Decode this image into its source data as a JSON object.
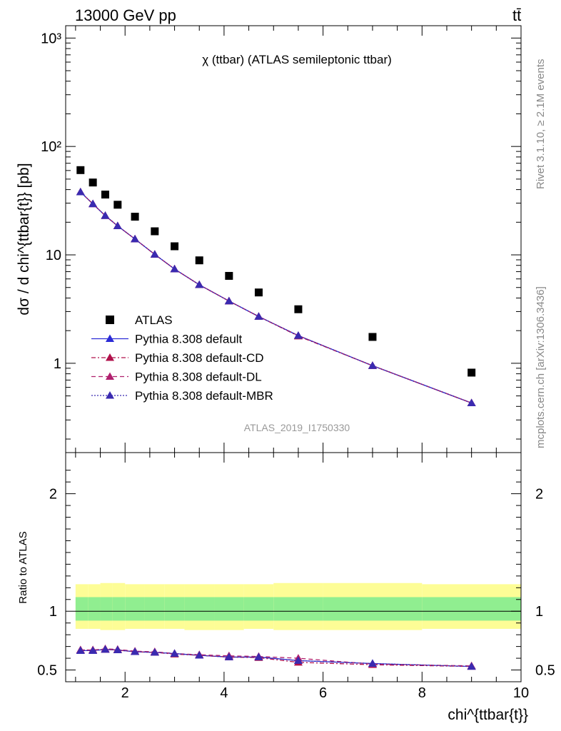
{
  "header": {
    "left": "13000 GeV pp",
    "right": "tt̄"
  },
  "side_labels": {
    "rivet": "Rivet 3.1.10, ≥ 2.1M events",
    "mcplots": "mcplots.cern.ch [arXiv:1306.3436]"
  },
  "colors": {
    "data": "#000000",
    "default": "#2b2bd6",
    "cd": "#b0104a",
    "dl": "#b0206e",
    "mbr": "#3a2ab0",
    "band_outer": "#fdfd96",
    "band_inner": "#90ee90"
  },
  "chart_data": [
    {
      "type": "scatter",
      "panel": "main",
      "title": "χ (ttbar) (ATLAS semileptonic ttbar)",
      "watermark": "ATLAS_2019_I1750330",
      "ylabel": "dσ / d chi^{ttbar{t}} [pb]",
      "yscale": "log",
      "ylim": [
        0.15,
        1300
      ],
      "xlim": [
        0.8,
        10
      ],
      "y_ticks": [
        "1",
        "10",
        "10²",
        "10³"
      ],
      "x_ticks": [
        "2",
        "4",
        "6",
        "8",
        "10"
      ],
      "x": [
        1.1,
        1.35,
        1.6,
        1.85,
        2.2,
        2.6,
        3.0,
        3.5,
        4.1,
        4.7,
        5.5,
        7.0,
        9.0
      ],
      "series": [
        {
          "name": "ATLAS",
          "marker": "square",
          "values": [
            60.5,
            46.5,
            36.0,
            29.0,
            22.5,
            16.5,
            12.0,
            8.9,
            6.4,
            4.5,
            3.15,
            1.75,
            0.82
          ]
        },
        {
          "name": "Pythia 8.308 default",
          "marker": "triangle",
          "line": "solid",
          "values": [
            38.0,
            29.5,
            23.0,
            18.5,
            14.0,
            10.1,
            7.4,
            5.3,
            3.75,
            2.7,
            1.8,
            0.95,
            0.43
          ]
        },
        {
          "name": "Pythia 8.308 default-CD",
          "marker": "triangle",
          "line": "dashdot",
          "values": [
            38.0,
            29.5,
            23.0,
            18.5,
            14.0,
            10.1,
            7.4,
            5.3,
            3.75,
            2.7,
            1.78,
            0.95,
            0.43
          ]
        },
        {
          "name": "Pythia 8.308 default-DL",
          "marker": "triangle",
          "line": "dashed",
          "values": [
            38.0,
            29.5,
            23.0,
            18.5,
            14.0,
            10.1,
            7.4,
            5.3,
            3.75,
            2.7,
            1.8,
            0.95,
            0.43
          ]
        },
        {
          "name": "Pythia 8.308 default-MBR",
          "marker": "triangle",
          "line": "dotted",
          "values": [
            38.0,
            29.5,
            23.0,
            18.5,
            14.0,
            10.1,
            7.4,
            5.3,
            3.75,
            2.7,
            1.8,
            0.95,
            0.43
          ]
        }
      ]
    },
    {
      "type": "line",
      "panel": "ratio",
      "ylabel": "Ratio to ATLAS",
      "xlabel": "chi^{ttbar{t}}",
      "ylim": [
        0.4,
        2.35
      ],
      "xlim": [
        0.8,
        10
      ],
      "y_ticks": [
        "0.5",
        "1",
        "2"
      ],
      "x_ticks": [
        "2",
        "4",
        "6",
        "8",
        "10"
      ],
      "band": {
        "x_edges": [
          1.0,
          1.25,
          1.5,
          1.75,
          2.0,
          2.4,
          2.8,
          3.2,
          3.8,
          4.4,
          5.0,
          6.0,
          8.0,
          10.0
        ],
        "outer_low": [
          0.85,
          0.85,
          0.84,
          0.84,
          0.85,
          0.85,
          0.85,
          0.84,
          0.84,
          0.85,
          0.84,
          0.84,
          0.85
        ],
        "outer_high": [
          1.23,
          1.23,
          1.24,
          1.24,
          1.23,
          1.23,
          1.23,
          1.23,
          1.23,
          1.23,
          1.24,
          1.24,
          1.23
        ],
        "inner_low": [
          0.92,
          0.92,
          0.92,
          0.92,
          0.92,
          0.92,
          0.92,
          0.92,
          0.92,
          0.92,
          0.92,
          0.92,
          0.92
        ],
        "inner_high": [
          1.12,
          1.12,
          1.12,
          1.12,
          1.12,
          1.12,
          1.12,
          1.12,
          1.12,
          1.12,
          1.12,
          1.12,
          1.12
        ]
      },
      "x": [
        1.1,
        1.35,
        1.6,
        1.85,
        2.2,
        2.6,
        3.0,
        3.5,
        4.1,
        4.7,
        5.5,
        7.0,
        9.0
      ],
      "series": [
        {
          "name": "Pythia 8.308 default",
          "line": "solid",
          "values": [
            0.665,
            0.665,
            0.675,
            0.67,
            0.655,
            0.65,
            0.64,
            0.625,
            0.61,
            0.61,
            0.58,
            0.555,
            0.53
          ]
        },
        {
          "name": "Pythia 8.308 default-CD",
          "line": "dashdot",
          "values": [
            0.67,
            0.67,
            0.675,
            0.67,
            0.655,
            0.65,
            0.635,
            0.625,
            0.61,
            0.605,
            0.565,
            0.545,
            0.53
          ]
        },
        {
          "name": "Pythia 8.308 default-DL",
          "line": "dashed",
          "values": [
            0.67,
            0.67,
            0.68,
            0.675,
            0.66,
            0.655,
            0.64,
            0.63,
            0.62,
            0.615,
            0.6,
            0.55,
            0.535
          ]
        },
        {
          "name": "Pythia 8.308 default-MBR",
          "line": "dotted",
          "values": [
            0.665,
            0.665,
            0.675,
            0.67,
            0.655,
            0.65,
            0.64,
            0.625,
            0.61,
            0.61,
            0.58,
            0.555,
            0.53
          ]
        }
      ]
    }
  ]
}
